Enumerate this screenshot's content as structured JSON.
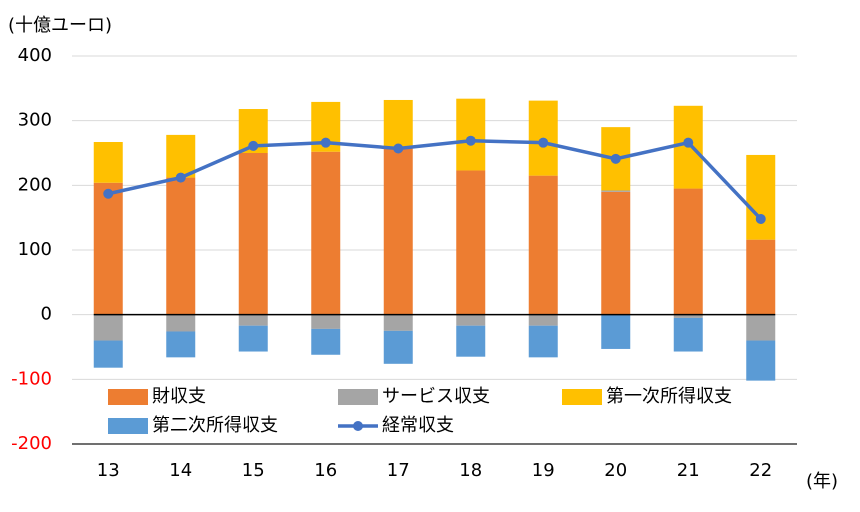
{
  "chart_data": {
    "type": "bar",
    "stacked": true,
    "y_label": "(十億ユーロ)",
    "x_label": "(年)",
    "categories": [
      "13",
      "14",
      "15",
      "16",
      "17",
      "18",
      "19",
      "20",
      "21",
      "22"
    ],
    "series": [
      {
        "name": "財収支",
        "color": "#ed7d31",
        "values": [
          204,
          212,
          250,
          252,
          257,
          223,
          215,
          190,
          195,
          116
        ]
      },
      {
        "name": "サービス収支",
        "color": "#a5a5a5",
        "values": [
          -40,
          -26,
          -17,
          -22,
          -25,
          -17,
          -17,
          2,
          -5,
          -40
        ]
      },
      {
        "name": "第一次所得収支",
        "color": "#ffc000",
        "values": [
          63,
          66,
          68,
          77,
          75,
          111,
          116,
          98,
          128,
          131
        ]
      },
      {
        "name": "第二次所得収支",
        "color": "#5b9bd5",
        "values": [
          -42,
          -40,
          -40,
          -40,
          -51,
          -48,
          -49,
          -53,
          -52,
          -62
        ]
      },
      {
        "name": "経常収支",
        "color": "#4472c4",
        "type": "line",
        "values": [
          187,
          212,
          261,
          266,
          257,
          269,
          266,
          241,
          266,
          148
        ]
      }
    ],
    "ylim": [
      -200,
      400
    ],
    "yticks": [
      -200,
      -100,
      0,
      100,
      200,
      300,
      400
    ],
    "grid": true,
    "legend": "lower-left",
    "negative_tick_color": "#ff0000"
  }
}
